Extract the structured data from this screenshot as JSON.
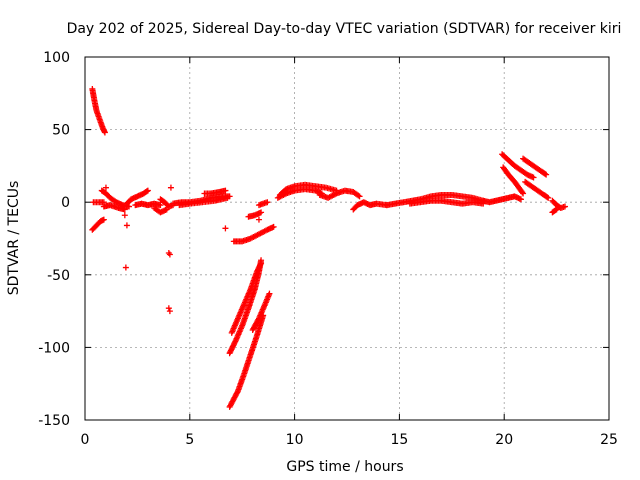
{
  "chart_data": {
    "type": "scatter",
    "title": "Day 202 of 2025, Sidereal Day-to-day VTEC variation (SDTVAR) for receiver kiri",
    "xlabel": "GPS time / hours",
    "ylabel": "SDTVAR / TECUs",
    "xlim": [
      0,
      25
    ],
    "ylim": [
      -150,
      100
    ],
    "xticks": [
      0,
      5,
      10,
      15,
      20,
      25
    ],
    "yticks": [
      -150,
      -100,
      -50,
      0,
      50,
      100
    ],
    "grid": true,
    "marker": "+",
    "color": "#ff0000",
    "segments": [
      [
        [
          0.35,
          78
        ],
        [
          0.45,
          70
        ],
        [
          0.55,
          63
        ],
        [
          0.7,
          57
        ],
        [
          0.85,
          51
        ],
        [
          0.95,
          48
        ]
      ],
      [
        [
          0.35,
          -19
        ],
        [
          0.55,
          -16
        ],
        [
          0.75,
          -13
        ],
        [
          0.9,
          -12
        ]
      ],
      [
        [
          0.4,
          0
        ],
        [
          0.7,
          0
        ],
        [
          0.9,
          0
        ]
      ],
      [
        [
          0.8,
          8
        ],
        [
          1.0,
          6
        ],
        [
          1.2,
          3
        ],
        [
          1.5,
          0
        ],
        [
          1.8,
          -2
        ],
        [
          2.1,
          -3
        ]
      ],
      [
        [
          0.9,
          -3
        ],
        [
          1.2,
          -2
        ],
        [
          1.6,
          -4
        ],
        [
          1.9,
          -5
        ]
      ],
      [
        [
          2.0,
          -1
        ],
        [
          2.2,
          2
        ],
        [
          2.5,
          4
        ],
        [
          2.8,
          6
        ],
        [
          3.0,
          8
        ]
      ],
      [
        [
          2.4,
          -2
        ],
        [
          2.7,
          -1
        ],
        [
          3.0,
          -2
        ],
        [
          3.3,
          -1
        ],
        [
          3.6,
          -2
        ]
      ],
      [
        [
          3.6,
          2
        ],
        [
          3.8,
          0
        ],
        [
          4.0,
          -3
        ],
        [
          4.2,
          -2
        ]
      ],
      [
        [
          3.3,
          -4
        ],
        [
          3.6,
          -7
        ],
        [
          3.9,
          -5
        ]
      ],
      [
        [
          4.2,
          -1
        ],
        [
          4.6,
          0
        ],
        [
          5.0,
          0
        ],
        [
          5.5,
          1
        ],
        [
          6.0,
          3
        ],
        [
          6.5,
          4
        ],
        [
          6.9,
          4
        ]
      ],
      [
        [
          4.5,
          -2
        ],
        [
          5.0,
          -1
        ],
        [
          5.6,
          0
        ],
        [
          6.2,
          1
        ],
        [
          6.8,
          3
        ]
      ],
      [
        [
          5.7,
          6
        ],
        [
          6.0,
          6
        ],
        [
          6.4,
          7
        ],
        [
          6.7,
          8
        ]
      ],
      [
        [
          6.9,
          -104
        ],
        [
          7.2,
          -95
        ],
        [
          7.5,
          -85
        ],
        [
          7.8,
          -73
        ],
        [
          8.1,
          -60
        ],
        [
          8.3,
          -48
        ],
        [
          8.4,
          -40
        ]
      ],
      [
        [
          7.0,
          -90
        ],
        [
          7.3,
          -80
        ],
        [
          7.6,
          -70
        ],
        [
          7.9,
          -60
        ],
        [
          8.2,
          -48
        ],
        [
          8.4,
          -42
        ]
      ],
      [
        [
          6.9,
          -141
        ],
        [
          7.3,
          -130
        ],
        [
          7.6,
          -118
        ],
        [
          7.9,
          -105
        ],
        [
          8.2,
          -92
        ],
        [
          8.5,
          -78
        ]
      ],
      [
        [
          8.0,
          -88
        ],
        [
          8.3,
          -80
        ],
        [
          8.6,
          -70
        ],
        [
          8.8,
          -63
        ]
      ],
      [
        [
          7.1,
          -27
        ],
        [
          7.5,
          -27
        ],
        [
          7.9,
          -25
        ],
        [
          8.3,
          -22
        ],
        [
          8.7,
          -19
        ],
        [
          9.0,
          -17
        ]
      ],
      [
        [
          7.8,
          -10
        ],
        [
          8.1,
          -9
        ],
        [
          8.4,
          -7
        ]
      ],
      [
        [
          8.3,
          -2
        ],
        [
          8.5,
          -1
        ],
        [
          8.7,
          0
        ]
      ],
      [
        [
          9.3,
          5
        ],
        [
          9.6,
          9
        ],
        [
          10.0,
          11
        ],
        [
          10.5,
          12
        ],
        [
          11.0,
          11
        ],
        [
          11.5,
          10
        ],
        [
          12.0,
          8
        ]
      ],
      [
        [
          9.2,
          3
        ],
        [
          9.6,
          6
        ],
        [
          10.0,
          8
        ],
        [
          10.5,
          9
        ],
        [
          11.0,
          8
        ],
        [
          11.3,
          6
        ]
      ],
      [
        [
          11.2,
          5
        ],
        [
          11.6,
          3
        ],
        [
          12.0,
          6
        ],
        [
          12.4,
          8
        ],
        [
          12.8,
          7
        ],
        [
          13.1,
          4
        ]
      ],
      [
        [
          12.8,
          -5
        ],
        [
          13.0,
          -2
        ],
        [
          13.3,
          0
        ],
        [
          13.6,
          -2
        ],
        [
          13.9,
          -1
        ],
        [
          14.4,
          -2
        ]
      ],
      [
        [
          14.4,
          -2
        ],
        [
          14.8,
          -1
        ],
        [
          15.2,
          0
        ],
        [
          15.6,
          1
        ],
        [
          16.0,
          2
        ],
        [
          16.5,
          4
        ],
        [
          17.0,
          5
        ],
        [
          17.5,
          5
        ],
        [
          18.0,
          4
        ],
        [
          18.5,
          3
        ],
        [
          19.0,
          1
        ]
      ],
      [
        [
          15.5,
          -1
        ],
        [
          16.0,
          0
        ],
        [
          16.5,
          1
        ],
        [
          17.0,
          1
        ],
        [
          17.5,
          0
        ],
        [
          18.0,
          -1
        ],
        [
          18.5,
          0
        ],
        [
          19.0,
          -1
        ]
      ],
      [
        [
          19.0,
          1
        ],
        [
          19.3,
          0
        ],
        [
          19.6,
          1
        ],
        [
          19.9,
          2
        ],
        [
          20.2,
          3
        ],
        [
          20.5,
          4
        ],
        [
          20.8,
          2
        ]
      ],
      [
        [
          19.9,
          33
        ],
        [
          20.2,
          29
        ],
        [
          20.5,
          25
        ],
        [
          20.8,
          22
        ],
        [
          21.1,
          19
        ],
        [
          21.4,
          17
        ]
      ],
      [
        [
          19.95,
          24
        ],
        [
          20.2,
          19
        ],
        [
          20.5,
          14
        ],
        [
          20.7,
          10
        ],
        [
          20.9,
          6
        ]
      ],
      [
        [
          20.9,
          30
        ],
        [
          21.2,
          27
        ],
        [
          21.5,
          24
        ],
        [
          21.8,
          21
        ],
        [
          22.0,
          19
        ]
      ],
      [
        [
          21.0,
          14
        ],
        [
          21.3,
          11
        ],
        [
          21.6,
          8
        ],
        [
          21.9,
          5
        ],
        [
          22.1,
          3
        ]
      ],
      [
        [
          22.3,
          1
        ],
        [
          22.5,
          -2
        ],
        [
          22.7,
          -4
        ],
        [
          22.9,
          -3
        ]
      ],
      [
        [
          22.3,
          -7
        ],
        [
          22.5,
          -5
        ]
      ]
    ],
    "points": [
      [
        1.0,
        10
      ],
      [
        1.9,
        -9
      ],
      [
        2.0,
        -16
      ],
      [
        1.95,
        -45
      ],
      [
        4.0,
        -35
      ],
      [
        4.05,
        -36
      ],
      [
        4.0,
        -73
      ],
      [
        4.05,
        -75
      ],
      [
        4.1,
        10
      ],
      [
        6.7,
        -18
      ],
      [
        8.3,
        -12
      ]
    ]
  }
}
